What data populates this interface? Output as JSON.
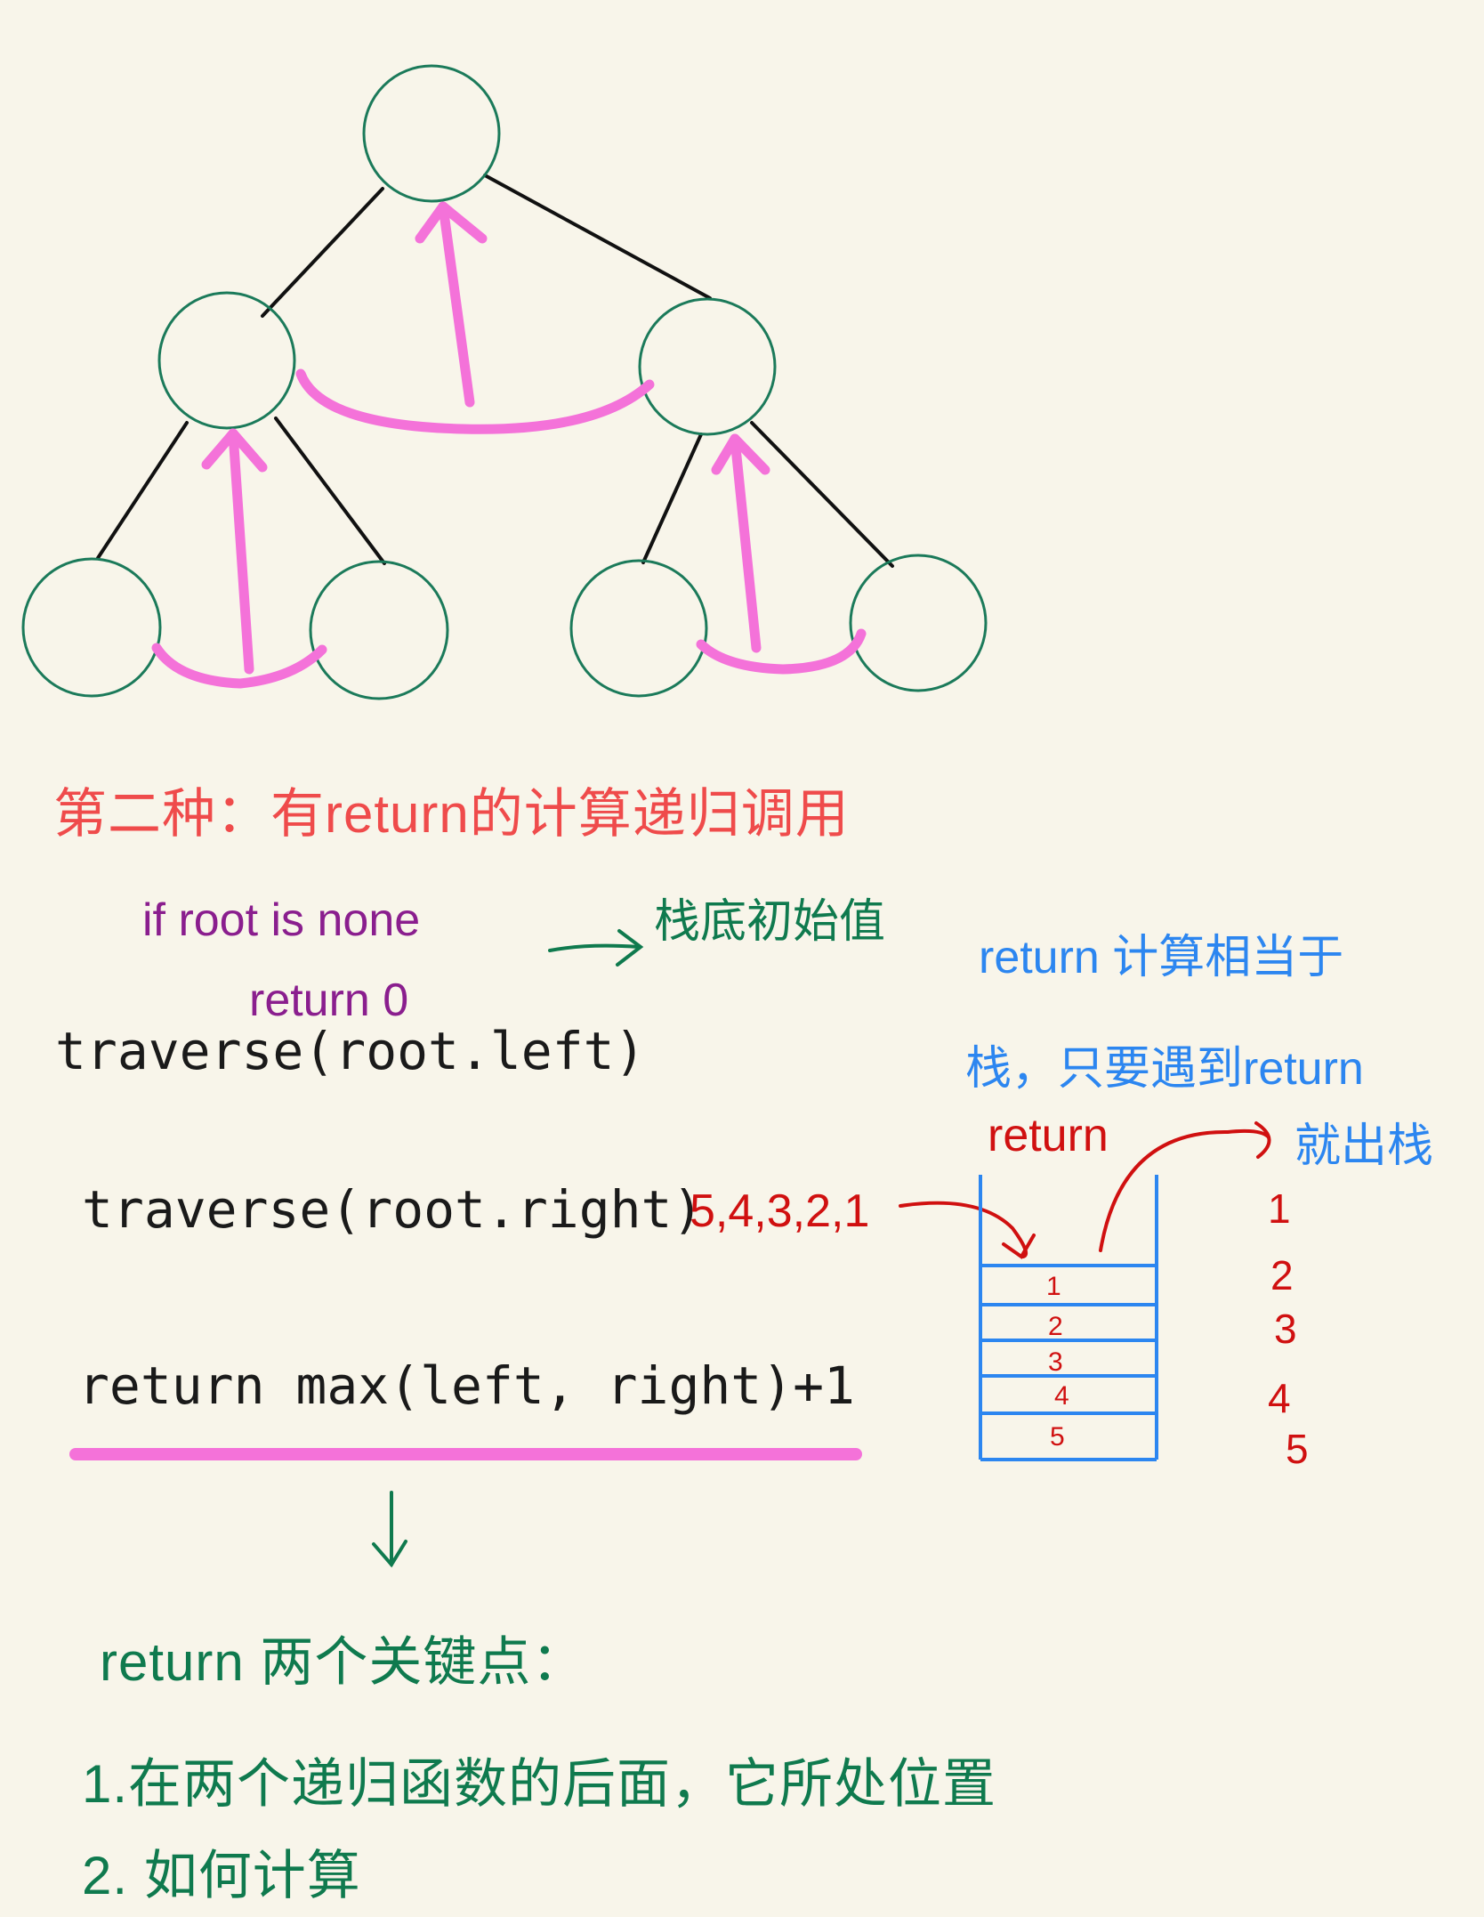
{
  "colors": {
    "background": "#f8f5ea",
    "node_stroke": "#1b7a5a",
    "edge": "#111111",
    "arrow": "#f472d9",
    "stack": "#2c86f0",
    "stack_text": "#d01010"
  },
  "notes": {
    "title": "第二种：有return的计算递归调用",
    "base_case_if": "if root is none",
    "base_case_return": "return 0",
    "base_case_arrow_label": "栈底初始值",
    "call_left": "traverse(root.left)",
    "call_right": "traverse(root.right)",
    "return_line": "return max(left, right)+1",
    "push_order": "5,4,3,2,1",
    "blue_note_line1": "return 计算相当于",
    "blue_note_line2": "栈，只要遇到return",
    "return_label": "return",
    "pop_label": "就出栈",
    "pop_sequence": [
      "1",
      "2",
      "3",
      "4",
      "5"
    ],
    "key_points_heading": "return 两个关键点：",
    "key_point_1": "1.在两个递归函数的后面，它所处位置",
    "key_point_2": "2. 如何计算"
  },
  "stack": {
    "items": [
      "1",
      "2",
      "3",
      "4",
      "5"
    ]
  }
}
